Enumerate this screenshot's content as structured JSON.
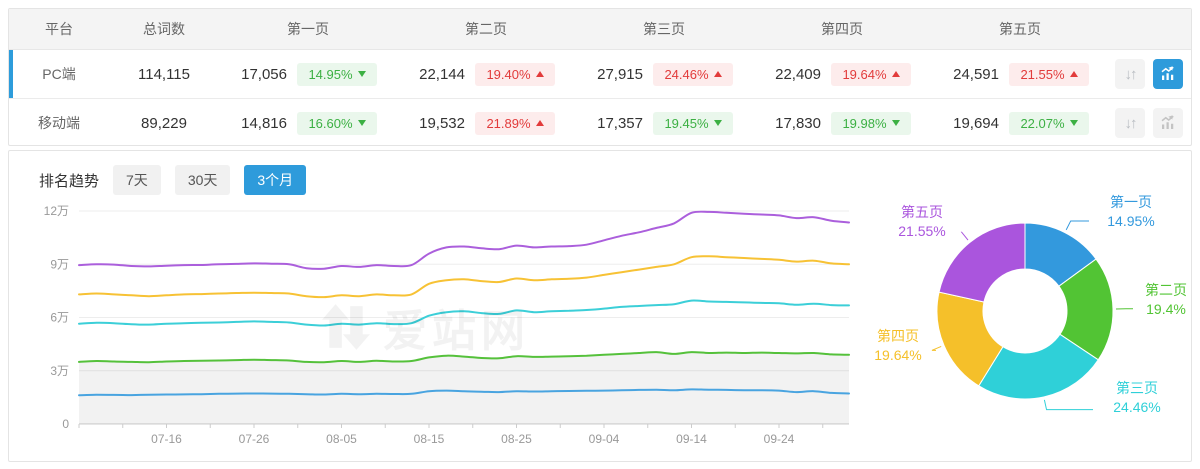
{
  "table": {
    "columns": [
      "平台",
      "总词数",
      "第一页",
      "第二页",
      "第三页",
      "第四页",
      "第五页"
    ],
    "rows": [
      {
        "platform": "PC端",
        "total": "114,115",
        "selected": true,
        "pages": [
          {
            "count": "17,056",
            "pct": "14.95%",
            "dir": "down"
          },
          {
            "count": "22,144",
            "pct": "19.40%",
            "dir": "up"
          },
          {
            "count": "27,915",
            "pct": "24.46%",
            "dir": "up"
          },
          {
            "count": "22,409",
            "pct": "19.64%",
            "dir": "up"
          },
          {
            "count": "24,591",
            "pct": "21.55%",
            "dir": "up"
          }
        ],
        "sort_glyph": "↓↑",
        "chart_button_active": true
      },
      {
        "platform": "移动端",
        "total": "89,229",
        "selected": false,
        "pages": [
          {
            "count": "14,816",
            "pct": "16.60%",
            "dir": "down"
          },
          {
            "count": "19,532",
            "pct": "21.89%",
            "dir": "up"
          },
          {
            "count": "17,357",
            "pct": "19.45%",
            "dir": "down"
          },
          {
            "count": "17,830",
            "pct": "19.98%",
            "dir": "down"
          },
          {
            "count": "19,694",
            "pct": "22.07%",
            "dir": "down"
          }
        ],
        "sort_glyph": "↓↑",
        "chart_button_active": false
      }
    ]
  },
  "trend": {
    "title": "排名趋势",
    "tabs": [
      {
        "label": "7天",
        "active": false
      },
      {
        "label": "30天",
        "active": false
      },
      {
        "label": "3个月",
        "active": true
      }
    ],
    "watermark": "爱站网"
  },
  "colors": {
    "accent_blue": "#2e9bdb",
    "badge_up_red": "#e23b3b",
    "badge_down_green": "#3cb043"
  },
  "chart_data": [
    {
      "type": "line",
      "title": "排名趋势 (3个月)",
      "stacked_cumulative": true,
      "unit": "万",
      "x_end_day": 88,
      "point_step_days": 2,
      "x_ticks": [
        {
          "label": "07-16",
          "day": 10
        },
        {
          "label": "07-26",
          "day": 20
        },
        {
          "label": "08-05",
          "day": 30
        },
        {
          "label": "08-15",
          "day": 40
        },
        {
          "label": "08-25",
          "day": 50
        },
        {
          "label": "09-04",
          "day": 60
        },
        {
          "label": "09-14",
          "day": 70
        },
        {
          "label": "09-24",
          "day": 80
        }
      ],
      "ylim": [
        0,
        12
      ],
      "yticks": [
        {
          "label": "0",
          "v": 0
        },
        {
          "label": "3万",
          "v": 3
        },
        {
          "label": "6万",
          "v": 6
        },
        {
          "label": "9万",
          "v": 9
        },
        {
          "label": "12万",
          "v": 12
        }
      ],
      "area_under": "第二页",
      "legend_position": "none",
      "grid": true,
      "series": [
        {
          "name": "第一页",
          "color": "#49a4e0",
          "values": [
            1.62,
            1.65,
            1.64,
            1.63,
            1.65,
            1.66,
            1.67,
            1.68,
            1.7,
            1.71,
            1.72,
            1.71,
            1.7,
            1.68,
            1.66,
            1.7,
            1.68,
            1.7,
            1.69,
            1.7,
            1.85,
            1.88,
            1.85,
            1.82,
            1.8,
            1.85,
            1.83,
            1.85,
            1.86,
            1.87,
            1.88,
            1.9,
            1.92,
            1.93,
            1.9,
            1.95,
            1.93,
            1.92,
            1.9,
            1.9,
            1.88,
            1.8,
            1.85,
            1.75,
            1.72
          ]
        },
        {
          "name": "第二页",
          "color": "#55c13b",
          "values": [
            3.5,
            3.55,
            3.52,
            3.5,
            3.48,
            3.52,
            3.55,
            3.56,
            3.58,
            3.6,
            3.62,
            3.6,
            3.58,
            3.5,
            3.48,
            3.55,
            3.5,
            3.56,
            3.52,
            3.55,
            3.75,
            3.85,
            3.8,
            3.72,
            3.7,
            3.82,
            3.78,
            3.8,
            3.82,
            3.85,
            3.9,
            3.95,
            4.0,
            4.05,
            3.95,
            4.05,
            4.0,
            4.02,
            4.0,
            4.02,
            4.0,
            3.98,
            4.0,
            3.92,
            3.9
          ]
        },
        {
          "name": "第三页",
          "color": "#3ccfd8",
          "values": [
            5.65,
            5.7,
            5.68,
            5.62,
            5.6,
            5.65,
            5.68,
            5.7,
            5.72,
            5.75,
            5.78,
            5.75,
            5.72,
            5.6,
            5.55,
            5.65,
            5.6,
            5.68,
            5.63,
            5.68,
            6.1,
            6.3,
            6.35,
            6.25,
            6.2,
            6.4,
            6.3,
            6.35,
            6.38,
            6.42,
            6.5,
            6.6,
            6.65,
            6.7,
            6.75,
            6.95,
            6.9,
            6.88,
            6.85,
            6.82,
            6.8,
            6.72,
            6.78,
            6.7,
            6.68
          ]
        },
        {
          "name": "第四页",
          "color": "#f7c235",
          "values": [
            7.3,
            7.35,
            7.3,
            7.25,
            7.2,
            7.25,
            7.3,
            7.32,
            7.35,
            7.38,
            7.4,
            7.38,
            7.35,
            7.2,
            7.15,
            7.25,
            7.2,
            7.3,
            7.25,
            7.3,
            7.9,
            8.1,
            8.15,
            8.05,
            8.0,
            8.2,
            8.1,
            8.15,
            8.18,
            8.25,
            8.4,
            8.55,
            8.7,
            8.85,
            9.0,
            9.4,
            9.45,
            9.4,
            9.35,
            9.3,
            9.25,
            9.15,
            9.2,
            9.05,
            9.0
          ]
        },
        {
          "name": "第五页",
          "color": "#ab5fdc",
          "values": [
            8.95,
            9.0,
            8.98,
            8.9,
            8.88,
            8.92,
            8.95,
            8.96,
            9.0,
            9.02,
            9.05,
            9.03,
            9.0,
            8.78,
            8.75,
            8.9,
            8.85,
            8.95,
            8.9,
            8.95,
            9.6,
            9.95,
            10.0,
            9.9,
            9.85,
            10.05,
            9.95,
            10.0,
            10.02,
            10.1,
            10.35,
            10.6,
            10.8,
            11.05,
            11.3,
            11.9,
            11.95,
            11.9,
            11.85,
            11.8,
            11.75,
            11.6,
            11.65,
            11.45,
            11.35
          ]
        }
      ]
    },
    {
      "type": "donut",
      "clockwise": true,
      "start_at_top": true,
      "slices": [
        {
          "label": "第一页",
          "value_pct": 14.95,
          "display": "14.95%",
          "color": "#3399dd"
        },
        {
          "label": "第二页",
          "value_pct": 19.4,
          "display": "19.4%",
          "color": "#52c434"
        },
        {
          "label": "第三页",
          "value_pct": 24.46,
          "display": "24.46%",
          "color": "#2fd0d8"
        },
        {
          "label": "第四页",
          "value_pct": 19.64,
          "display": "19.64%",
          "color": "#f5c02a"
        },
        {
          "label": "第五页",
          "value_pct": 21.55,
          "display": "21.55%",
          "color": "#aa55dd"
        }
      ]
    }
  ]
}
